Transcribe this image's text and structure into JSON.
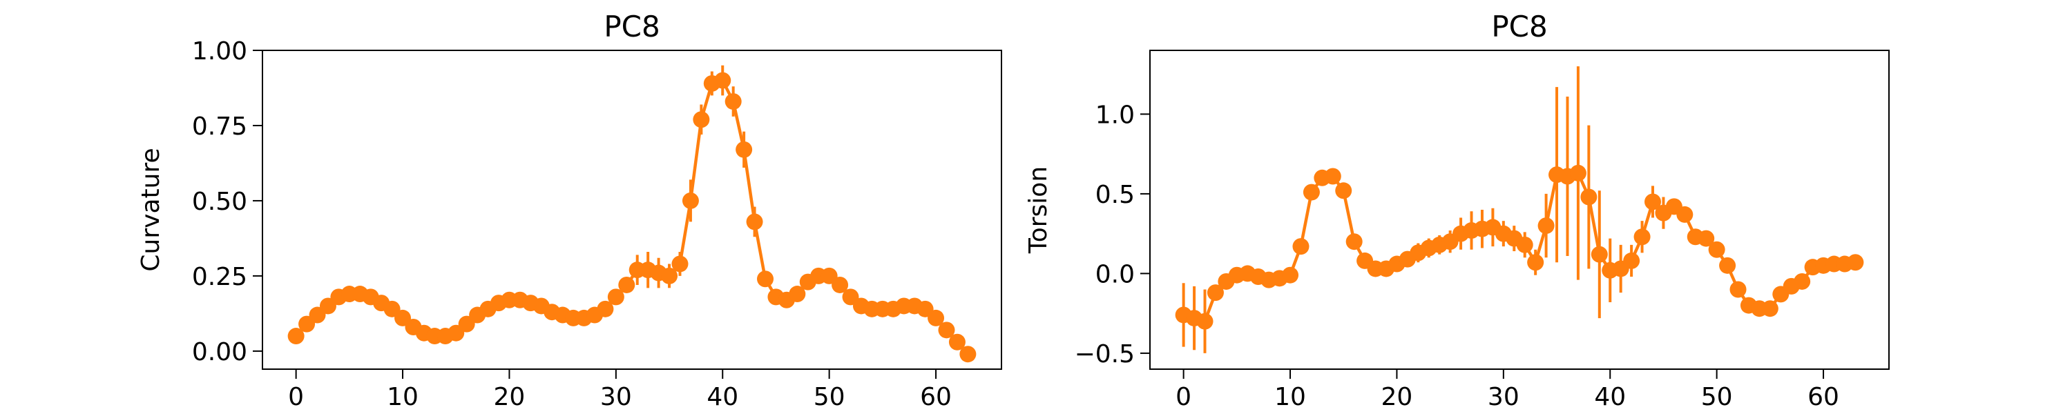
{
  "chart_data": [
    {
      "type": "line",
      "title": "PC8",
      "xlabel": "",
      "ylabel": "Curvature",
      "xlim": [
        -3.15,
        66.15
      ],
      "ylim": [
        -0.06,
        1.0
      ],
      "xticks": [
        0,
        10,
        20,
        30,
        40,
        50,
        60
      ],
      "xtick_labels": [
        "0",
        "10",
        "20",
        "30",
        "40",
        "50",
        "60"
      ],
      "yticks": [
        0.0,
        0.25,
        0.5,
        0.75,
        1.0
      ],
      "ytick_labels": [
        "0.00",
        "0.25",
        "0.50",
        "0.75",
        "1.00"
      ],
      "grid": false,
      "color": "#ff7f0e",
      "series": [
        {
          "x": [
            0,
            1,
            2,
            3,
            4,
            5,
            6,
            7,
            8,
            9,
            10,
            11,
            12,
            13,
            14,
            15,
            16,
            17,
            18,
            19,
            20,
            21,
            22,
            23,
            24,
            25,
            26,
            27,
            28,
            29,
            30,
            31,
            32,
            33,
            34,
            35,
            36,
            37,
            38,
            39,
            40,
            41,
            42,
            43,
            44,
            45,
            46,
            47,
            48,
            49,
            50,
            51,
            52,
            53,
            54,
            55,
            56,
            57,
            58,
            59,
            60,
            61,
            62,
            63
          ],
          "y": [
            0.05,
            0.09,
            0.12,
            0.15,
            0.18,
            0.19,
            0.19,
            0.18,
            0.16,
            0.14,
            0.11,
            0.08,
            0.06,
            0.05,
            0.05,
            0.06,
            0.09,
            0.12,
            0.14,
            0.16,
            0.17,
            0.17,
            0.16,
            0.15,
            0.13,
            0.12,
            0.11,
            0.11,
            0.12,
            0.14,
            0.18,
            0.22,
            0.27,
            0.27,
            0.26,
            0.25,
            0.29,
            0.5,
            0.77,
            0.89,
            0.9,
            0.83,
            0.67,
            0.43,
            0.24,
            0.18,
            0.17,
            0.19,
            0.23,
            0.25,
            0.25,
            0.22,
            0.18,
            0.15,
            0.14,
            0.14,
            0.14,
            0.15,
            0.15,
            0.14,
            0.11,
            0.07,
            0.03,
            -0.01
          ],
          "err": [
            0,
            0,
            0,
            0,
            0,
            0,
            0,
            0,
            0,
            0,
            0,
            0,
            0,
            0,
            0,
            0,
            0,
            0,
            0,
            0,
            0,
            0,
            0,
            0,
            0,
            0,
            0,
            0,
            0,
            0,
            0,
            0,
            0.05,
            0.06,
            0.05,
            0.04,
            0.04,
            0.07,
            0.05,
            0.04,
            0.05,
            0.05,
            0.06,
            0.05,
            0.02,
            0,
            0.02,
            0.02,
            0.02,
            0,
            0,
            0,
            0,
            0,
            0,
            0,
            0,
            0,
            0,
            0,
            0,
            0,
            0,
            0
          ]
        }
      ]
    },
    {
      "type": "line",
      "title": "PC8",
      "xlabel": "",
      "ylabel": "Torsion",
      "xlim": [
        -3.15,
        66.15
      ],
      "ylim": [
        -0.6,
        1.4
      ],
      "xticks": [
        0,
        10,
        20,
        30,
        40,
        50,
        60
      ],
      "xtick_labels": [
        "0",
        "10",
        "20",
        "30",
        "40",
        "50",
        "60"
      ],
      "yticks": [
        -0.5,
        0.0,
        0.5,
        1.0
      ],
      "ytick_labels": [
        "−0.5",
        "0.0",
        "0.5",
        "1.0"
      ],
      "grid": false,
      "color": "#ff7f0e",
      "series": [
        {
          "x": [
            0,
            1,
            2,
            3,
            4,
            5,
            6,
            7,
            8,
            9,
            10,
            11,
            12,
            13,
            14,
            15,
            16,
            17,
            18,
            19,
            20,
            21,
            22,
            23,
            24,
            25,
            26,
            27,
            28,
            29,
            30,
            31,
            32,
            33,
            34,
            35,
            36,
            37,
            38,
            39,
            40,
            41,
            42,
            43,
            44,
            45,
            46,
            47,
            48,
            49,
            50,
            51,
            52,
            53,
            54,
            55,
            56,
            57,
            58,
            59,
            60,
            61,
            62,
            63
          ],
          "y": [
            -0.26,
            -0.28,
            -0.3,
            -0.12,
            -0.05,
            -0.01,
            0.0,
            -0.02,
            -0.04,
            -0.03,
            -0.01,
            0.17,
            0.51,
            0.6,
            0.61,
            0.52,
            0.2,
            0.08,
            0.03,
            0.03,
            0.06,
            0.09,
            0.13,
            0.16,
            0.18,
            0.2,
            0.25,
            0.27,
            0.28,
            0.29,
            0.25,
            0.22,
            0.18,
            0.07,
            0.3,
            0.62,
            0.61,
            0.63,
            0.48,
            0.12,
            0.02,
            0.03,
            0.08,
            0.23,
            0.45,
            0.38,
            0.42,
            0.37,
            0.23,
            0.22,
            0.15,
            0.05,
            -0.1,
            -0.2,
            -0.22,
            -0.22,
            -0.13,
            -0.08,
            -0.05,
            0.04,
            0.05,
            0.06,
            0.06,
            0.07
          ],
          "err": [
            0.2,
            0.2,
            0.2,
            0.05,
            0.04,
            0.04,
            0.04,
            0.04,
            0.04,
            0.04,
            0.05,
            0.04,
            0.04,
            0.04,
            0.04,
            0.05,
            0.04,
            0.04,
            0.04,
            0.04,
            0.05,
            0.05,
            0.06,
            0.06,
            0.06,
            0.07,
            0.1,
            0.12,
            0.12,
            0.12,
            0.08,
            0.08,
            0.08,
            0.08,
            0.2,
            0.55,
            0.5,
            0.67,
            0.45,
            0.4,
            0.2,
            0.15,
            0.1,
            0.1,
            0.1,
            0.1,
            0.05,
            0.05,
            0.05,
            0.05,
            0.05,
            0.05,
            0.05,
            0.05,
            0.05,
            0.05,
            0.05,
            0.05,
            0.05,
            0.05,
            0.05,
            0.05,
            0.05,
            0.05
          ]
        }
      ]
    }
  ]
}
